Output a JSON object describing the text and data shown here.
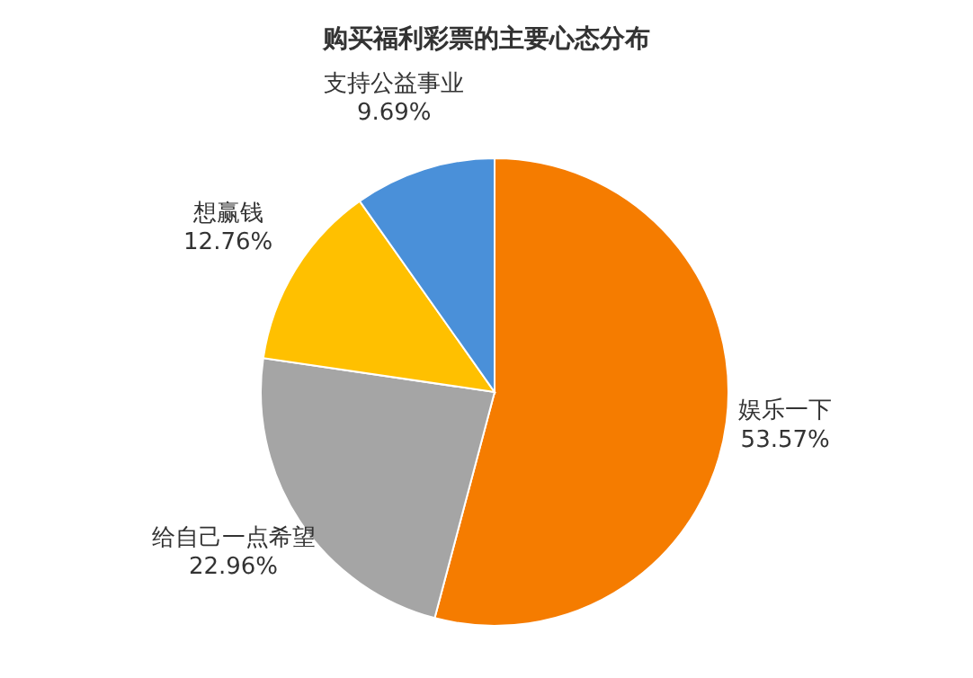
{
  "chart_data": {
    "type": "pie",
    "title": "购买福利彩票的主要心态分布",
    "categories": [
      "娱乐一下",
      "给自己一点希望",
      "想赢钱",
      "支持公益事业"
    ],
    "values": [
      53.57,
      22.96,
      12.76,
      9.69
    ],
    "value_labels": [
      "53.57%",
      "22.96%",
      "12.76%",
      "9.69%"
    ],
    "colors": [
      "#f57c00",
      "#a5a5a5",
      "#ffc000",
      "#4a90d9"
    ]
  }
}
